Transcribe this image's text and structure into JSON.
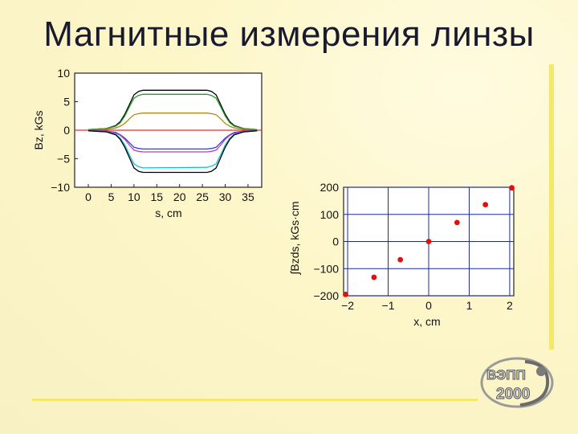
{
  "title": "Магнитные измерения линзы",
  "colors": {
    "accent": "#f3e86a",
    "grid": "#1c2b9a",
    "points": "#e01010"
  },
  "logo": {
    "text": "ВЭПП 2000"
  },
  "chart_data": [
    {
      "type": "line",
      "xlabel": "s, cm",
      "ylabel": "Bz, kGs",
      "xlim": [
        -3,
        38
      ],
      "ylim": [
        -10,
        10
      ],
      "xticks": [
        "0",
        "5",
        "10",
        "15",
        "20",
        "25",
        "30",
        "35"
      ],
      "yticks": [
        "10",
        "5",
        "0",
        "−5",
        "−10"
      ],
      "grid": false,
      "series": [
        {
          "color": "#000000",
          "flat": 7.0,
          "x": [
            0,
            4,
            6,
            7,
            8,
            9,
            10,
            11,
            12,
            26,
            27,
            28,
            29,
            30,
            31,
            32,
            34,
            37
          ],
          "y": [
            0.1,
            0.3,
            0.8,
            1.5,
            2.8,
            4.5,
            6.2,
            6.8,
            7.0,
            7.0,
            6.8,
            6.2,
            4.5,
            2.8,
            1.5,
            0.8,
            0.3,
            0.1
          ]
        },
        {
          "color": "#2a9a2a",
          "flat": 6.3,
          "x": [
            0,
            4,
            6,
            7,
            8,
            9,
            10,
            11,
            12,
            26,
            27,
            28,
            29,
            30,
            31,
            32,
            34,
            37
          ],
          "y": [
            0.1,
            0.3,
            0.7,
            1.3,
            2.5,
            4.1,
            5.6,
            6.1,
            6.3,
            6.3,
            6.1,
            5.6,
            4.1,
            2.5,
            1.3,
            0.7,
            0.3,
            0.1
          ]
        },
        {
          "color": "#b08a10",
          "flat": 3.0,
          "x": [
            0,
            4,
            6,
            7,
            8,
            9,
            10,
            11,
            12,
            26,
            27,
            28,
            29,
            30,
            31,
            32,
            34,
            37
          ],
          "y": [
            0.05,
            0.15,
            0.4,
            0.7,
            1.2,
            2.0,
            2.7,
            2.9,
            3.0,
            3.0,
            2.9,
            2.7,
            2.0,
            1.2,
            0.7,
            0.4,
            0.15,
            0.05
          ]
        },
        {
          "color": "#e03030",
          "flat": 0,
          "x": [
            -3,
            38
          ],
          "y": [
            0,
            0
          ]
        },
        {
          "color": "#3a3acc",
          "flat": -3.3,
          "x": [
            0,
            4,
            6,
            7,
            8,
            9,
            10,
            11,
            12,
            26,
            27,
            28,
            29,
            30,
            31,
            32,
            34,
            37
          ],
          "y": [
            -0.05,
            -0.15,
            -0.4,
            -0.8,
            -1.4,
            -2.2,
            -3.0,
            -3.2,
            -3.3,
            -3.3,
            -3.2,
            -3.0,
            -2.2,
            -1.4,
            -0.8,
            -0.4,
            -0.15,
            -0.05
          ]
        },
        {
          "color": "#b040c0",
          "flat": -3.8,
          "x": [
            0,
            4,
            6,
            7,
            8,
            9,
            10,
            11,
            12,
            26,
            27,
            28,
            29,
            30,
            31,
            32,
            34,
            37
          ],
          "y": [
            -0.05,
            -0.2,
            -0.5,
            -0.9,
            -1.6,
            -2.6,
            -3.5,
            -3.7,
            -3.8,
            -3.8,
            -3.7,
            -3.5,
            -2.6,
            -1.6,
            -0.9,
            -0.5,
            -0.2,
            -0.05
          ]
        },
        {
          "color": "#10c0d0",
          "flat": -6.5,
          "x": [
            0,
            4,
            6,
            7,
            8,
            9,
            10,
            11,
            12,
            26,
            27,
            28,
            29,
            30,
            31,
            32,
            34,
            37
          ],
          "y": [
            -0.1,
            -0.3,
            -0.7,
            -1.4,
            -2.6,
            -4.3,
            -5.9,
            -6.4,
            -6.6,
            -6.5,
            -6.3,
            -5.9,
            -4.3,
            -2.6,
            -1.4,
            -0.7,
            -0.3,
            -0.1
          ]
        },
        {
          "color": "#000000",
          "flat": -7.4,
          "x": [
            0,
            4,
            6,
            7,
            8,
            9,
            10,
            11,
            12,
            26,
            27,
            28,
            29,
            30,
            31,
            32,
            34,
            37
          ],
          "y": [
            -0.1,
            -0.3,
            -0.8,
            -1.6,
            -3.0,
            -4.8,
            -6.6,
            -7.2,
            -7.4,
            -7.4,
            -7.2,
            -6.6,
            -4.8,
            -3.0,
            -1.6,
            -0.8,
            -0.3,
            -0.1
          ]
        }
      ]
    },
    {
      "type": "scatter",
      "xlabel": "x, cm",
      "ylabel": "∫Bzds, kGs·cm",
      "xlim": [
        -2.1,
        2.1
      ],
      "ylim": [
        -200,
        200
      ],
      "xticks": [
        "−2",
        "−1",
        "0",
        "1",
        "2"
      ],
      "yticks": [
        "200",
        "100",
        "0",
        "−100",
        "−200"
      ],
      "grid": true,
      "points": [
        {
          "x": -2.05,
          "y": -195
        },
        {
          "x": -1.35,
          "y": -132
        },
        {
          "x": -0.7,
          "y": -67
        },
        {
          "x": 0.0,
          "y": 0
        },
        {
          "x": 0.7,
          "y": 70
        },
        {
          "x": 1.4,
          "y": 136
        },
        {
          "x": 2.05,
          "y": 198
        }
      ]
    }
  ]
}
